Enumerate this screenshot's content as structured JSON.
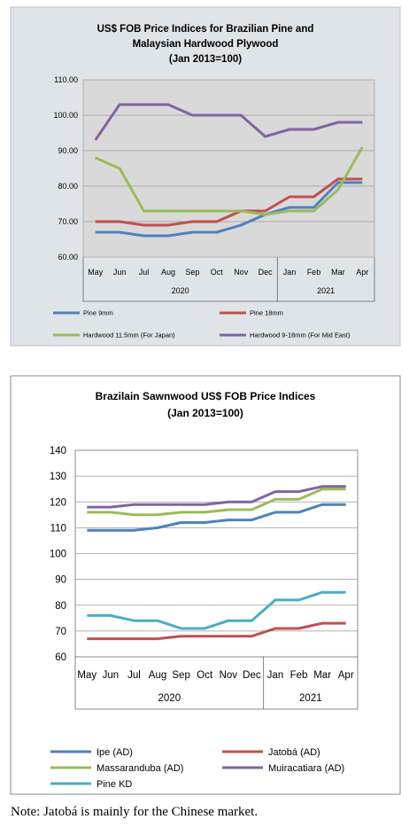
{
  "chart_data": [
    {
      "type": "line",
      "title_lines": [
        "US$ FOB Price Indices for Brazilian Pine and",
        "Malaysian Hardwood Plywood",
        "(Jan 2013=100)"
      ],
      "categories": [
        "May",
        "Jun",
        "Jul",
        "Aug",
        "Sep",
        "Oct",
        "Nov",
        "Dec",
        "Jan",
        "Feb",
        "Mar",
        "Apr"
      ],
      "year_groups": [
        {
          "label": "2020",
          "start": 0,
          "end": 7
        },
        {
          "label": "2021",
          "start": 8,
          "end": 11
        }
      ],
      "ylim": [
        60,
        110
      ],
      "yticks": [
        "60.00",
        "70.00",
        "80.00",
        "90.00",
        "100.00",
        "110.00"
      ],
      "ytick_values": [
        60,
        70,
        80,
        90,
        100,
        110
      ],
      "grid": true,
      "series": [
        {
          "name": "Pine 9mm",
          "color": "#4f81bd",
          "values": [
            67,
            67,
            66,
            66,
            67,
            67,
            69,
            72,
            74,
            74,
            81,
            81
          ]
        },
        {
          "name": "Pine 18mm",
          "color": "#c0504d",
          "values": [
            70,
            70,
            69,
            69,
            70,
            70,
            73,
            73,
            77,
            77,
            82,
            82
          ]
        },
        {
          "name": "Hardwood 11.5mm (For Japan)",
          "color": "#9bbb59",
          "values": [
            88,
            85,
            73,
            73,
            73,
            73,
            73,
            72,
            73,
            73,
            79,
            91
          ]
        },
        {
          "name": "Hardwood 9-18mm (For Mid East)",
          "color": "#8064a2",
          "values": [
            93,
            103,
            103,
            103,
            100,
            100,
            100,
            94,
            96,
            96,
            98,
            98
          ]
        }
      ]
    },
    {
      "type": "line",
      "title_lines": [
        "Brazilain Sawnwood US$ FOB Price Indices",
        "(Jan 2013=100)"
      ],
      "categories": [
        "May",
        "Jun",
        "Jul",
        "Aug",
        "Sep",
        "Oct",
        "Nov",
        "Dec",
        "Jan",
        "Feb",
        "Mar",
        "Apr"
      ],
      "year_groups": [
        {
          "label": "2020",
          "start": 0,
          "end": 7
        },
        {
          "label": "2021",
          "start": 8,
          "end": 11
        }
      ],
      "ylim": [
        60,
        140
      ],
      "yticks": [
        "60",
        "70",
        "80",
        "90",
        "100",
        "110",
        "120",
        "130",
        "140"
      ],
      "ytick_values": [
        60,
        70,
        80,
        90,
        100,
        110,
        120,
        130,
        140
      ],
      "grid": true,
      "series": [
        {
          "name": "Ipe (AD)",
          "color": "#4f81bd",
          "values": [
            109,
            109,
            109,
            110,
            112,
            112,
            113,
            113,
            116,
            116,
            119,
            119
          ]
        },
        {
          "name": "Jatobá (AD)",
          "color": "#c0504d",
          "values": [
            67,
            67,
            67,
            67,
            68,
            68,
            68,
            68,
            71,
            71,
            73,
            73
          ]
        },
        {
          "name": "Massaranduba (AD)",
          "color": "#9bbb59",
          "values": [
            116,
            116,
            115,
            115,
            116,
            116,
            117,
            117,
            121,
            121,
            125,
            125
          ]
        },
        {
          "name": "Muiracatiara (AD)",
          "color": "#8064a2",
          "values": [
            118,
            118,
            119,
            119,
            119,
            119,
            120,
            120,
            124,
            124,
            126,
            126
          ]
        },
        {
          "name": "Pine KD",
          "color": "#4bacc6",
          "values": [
            76,
            76,
            74,
            74,
            71,
            71,
            74,
            74,
            82,
            82,
            85,
            85
          ]
        }
      ]
    }
  ],
  "note": "Note: Jatobá is mainly for the Chinese market."
}
